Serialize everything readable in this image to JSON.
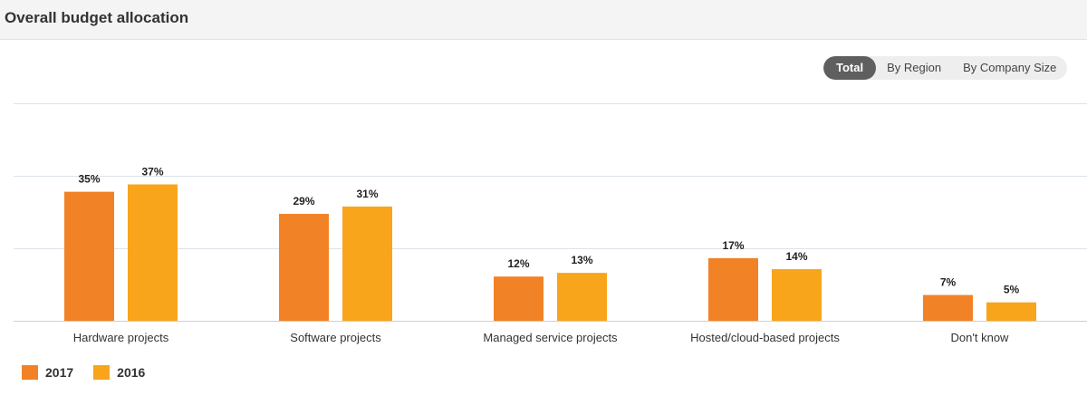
{
  "header": {
    "title": "Overall budget allocation"
  },
  "tabs": [
    {
      "label": "Total",
      "active": true
    },
    {
      "label": "By Region",
      "active": false
    },
    {
      "label": "By Company Size",
      "active": false
    }
  ],
  "colors": {
    "series_2017": "#f28226",
    "series_2016": "#f8a51b",
    "grid": "#dde3ea",
    "axis": "#c8d1dc"
  },
  "chart_data": {
    "type": "bar",
    "categories": [
      "Hardware projects",
      "Software projects",
      "Managed service projects",
      "Hosted/cloud-based projects",
      "Don't know"
    ],
    "series": [
      {
        "name": "2017",
        "values": [
          35,
          29,
          12,
          17,
          7
        ]
      },
      {
        "name": "2016",
        "values": [
          37,
          31,
          13,
          14,
          5
        ]
      }
    ],
    "value_suffix": "%",
    "ylim": [
      0,
      59
    ],
    "grid": true,
    "legend": "bottom-left"
  }
}
